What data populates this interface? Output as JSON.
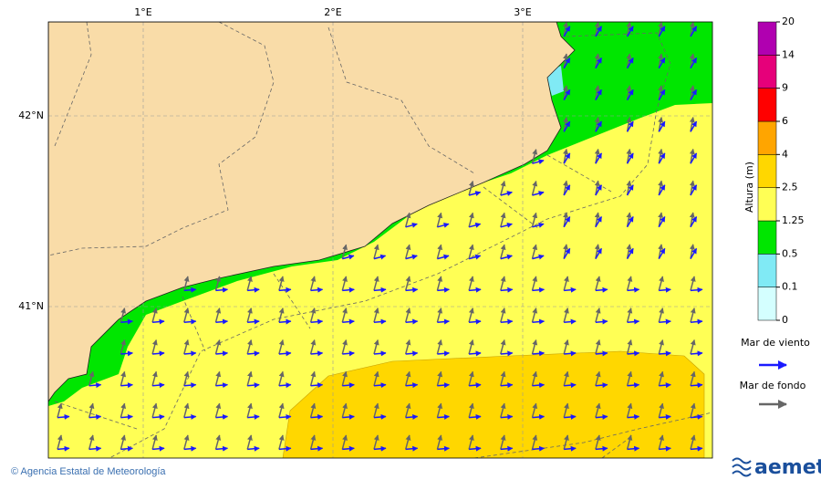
{
  "map": {
    "lon_labels": [
      "1°E",
      "2°E",
      "3°E"
    ],
    "lat_labels": [
      "42°N",
      "41°N"
    ],
    "colorbar": {
      "title": "Altura (m)",
      "levels": [
        0,
        0.1,
        0.5,
        1.25,
        2.5,
        4,
        6,
        9,
        14,
        20
      ],
      "colors": [
        "#d4ffff",
        "#80eaf5",
        "#00e600",
        "#ffff55",
        "#ffd700",
        "#ffa500",
        "#ff0000",
        "#e6007a",
        "#b000b0"
      ]
    },
    "legend": [
      "Mar de viento",
      "Mar de fondo"
    ],
    "footer": "© Agencia Estatal de Meteorología",
    "logo": "aemet"
  }
}
